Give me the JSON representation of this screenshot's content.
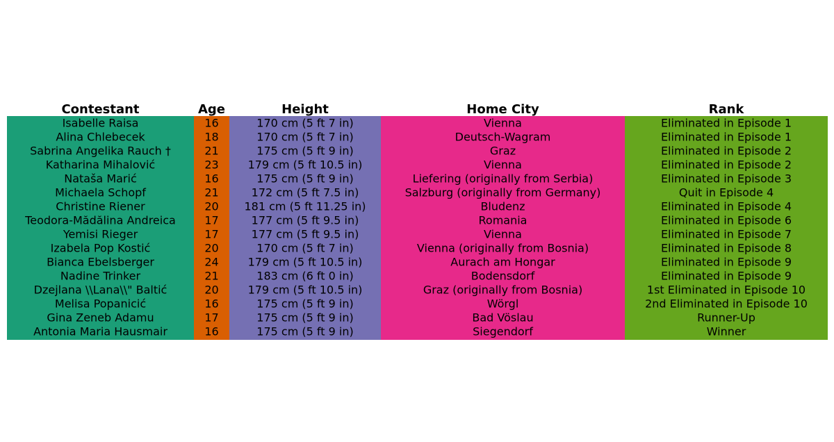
{
  "chart_data": {
    "type": "table",
    "columns": [
      {
        "name": "Contestant",
        "color": "#1b9e77"
      },
      {
        "name": "Age",
        "color": "#d95f02"
      },
      {
        "name": "Height",
        "color": "#7570b3"
      },
      {
        "name": "Home City",
        "color": "#e7298a"
      },
      {
        "name": "Rank",
        "color": "#66a61e"
      }
    ],
    "rows": [
      [
        "Isabelle Raisa",
        "16",
        "170 cm (5 ft 7 in)",
        "Vienna",
        "Eliminated in Episode 1"
      ],
      [
        "Alina Chlebecek",
        "18",
        "170 cm (5 ft 7 in)",
        "Deutsch-Wagram",
        "Eliminated in Episode 1"
      ],
      [
        "Sabrina Angelika Rauch †",
        "21",
        "175 cm (5 ft 9 in)",
        "Graz",
        "Eliminated in Episode 2"
      ],
      [
        "Katharina Mihalović",
        "23",
        "179 cm (5 ft 10.5 in)",
        "Vienna",
        "Eliminated in Episode 2"
      ],
      [
        "Nataša Marić",
        "16",
        "175 cm (5 ft 9 in)",
        "Liefering (originally from Serbia)",
        "Eliminated in Episode 3"
      ],
      [
        "Michaela Schopf",
        "21",
        "172 cm (5 ft 7.5 in)",
        "Salzburg (originally from Germany)",
        "Quit in Episode 4"
      ],
      [
        "Christine Riener",
        "20",
        "181 cm (5 ft 11.25 in)",
        "Bludenz",
        "Eliminated in Episode 4"
      ],
      [
        "Teodora-Mădălina Andreica",
        "17",
        "177 cm (5 ft 9.5 in)",
        "Romania",
        "Eliminated in Episode 6"
      ],
      [
        "Yemisi Rieger",
        "17",
        "177 cm (5 ft 9.5 in)",
        "Vienna",
        "Eliminated in Episode 7"
      ],
      [
        "Izabela Pop Kostić",
        "20",
        "170 cm (5 ft 7 in)",
        "Vienna (originally from Bosnia)",
        "Eliminated in Episode 8"
      ],
      [
        "Bianca Ebelsberger",
        "24",
        "179 cm (5 ft 10.5 in)",
        "Aurach am Hongar",
        "Eliminated in Episode 9"
      ],
      [
        "Nadine Trinker",
        "21",
        "183 cm (6 ft 0 in)",
        "Bodensdorf",
        "Eliminated in Episode 9"
      ],
      [
        "Dzejlana \\\\Lana\\\\\" Baltić",
        "20",
        "179 cm (5 ft 10.5 in)",
        "Graz (originally from Bosnia)",
        "1st Eliminated in Episode 10"
      ],
      [
        "Melisa Popanicić",
        "16",
        "175 cm (5 ft 9 in)",
        "Wörgl",
        "2nd Eliminated in Episode 10"
      ],
      [
        "Gina Zeneb Adamu",
        "17",
        "175 cm (5 ft 9 in)",
        "Bad Vöslau",
        "Runner-Up"
      ],
      [
        "Antonia Maria Hausmair",
        "16",
        "175 cm (5 ft 9 in)",
        "Siegendorf",
        "Winner"
      ]
    ]
  }
}
